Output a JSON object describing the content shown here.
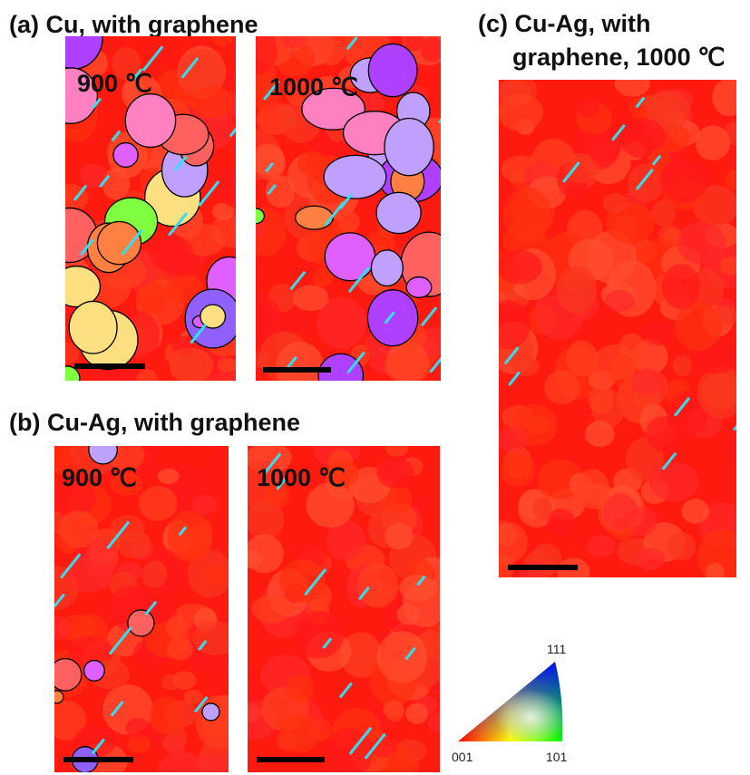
{
  "panels": [
    {
      "label": "(a) Cu, with graphene",
      "maps": [
        {
          "temperature": "900 ℃"
        },
        {
          "temperature": "1000 ℃"
        }
      ]
    },
    {
      "label": "(b) Cu-Ag, with graphene",
      "maps": [
        {
          "temperature": "900 ℃"
        },
        {
          "temperature": "1000 ℃"
        }
      ]
    },
    {
      "label_lines": [
        "(c) Cu-Ag, with",
        "graphene, 1000 ℃"
      ]
    }
  ],
  "color_key": {
    "top": "111",
    "left": "001",
    "right": "101"
  }
}
